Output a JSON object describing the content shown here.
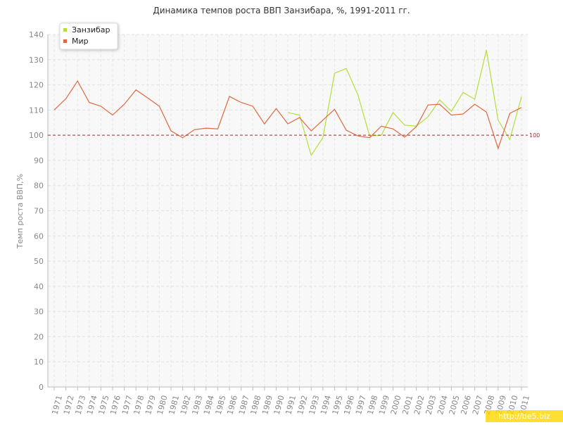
{
  "chart_data": {
    "type": "line",
    "title": "Динамика темпов роста ВВП Занзибара, %, 1991-2011 гг.",
    "y_label": "Темп роста ВВП,%",
    "categories": [
      "1971",
      "1972",
      "1973",
      "1974",
      "1975",
      "1976",
      "1977",
      "1978",
      "1979",
      "1980",
      "1981",
      "1982",
      "1983",
      "1984",
      "1985",
      "1986",
      "1987",
      "1988",
      "1989",
      "1990",
      "1991",
      "1992",
      "1993",
      "1994",
      "1995",
      "1996",
      "1997",
      "1998",
      "1999",
      "2000",
      "2001",
      "2002",
      "2003",
      "2004",
      "2005",
      "2006",
      "2007",
      "2008",
      "2009",
      "2010",
      "2011"
    ],
    "series": [
      {
        "name": "Занзибар",
        "color": "#b5de3c",
        "values": [
          null,
          null,
          null,
          null,
          null,
          null,
          null,
          null,
          null,
          null,
          null,
          null,
          null,
          null,
          null,
          null,
          null,
          null,
          null,
          null,
          109,
          108,
          92,
          99,
          124.6,
          126.5,
          116,
          99.7,
          100,
          109,
          104,
          103.6,
          107.3,
          114,
          109.5,
          117,
          114.3,
          133.8,
          106,
          98.3,
          115.3
        ]
      },
      {
        "name": "Мир",
        "color": "#e0683e",
        "values": [
          110,
          114.5,
          121.5,
          113,
          111.5,
          108,
          112.3,
          118,
          114.8,
          111.5,
          101.7,
          99,
          102.2,
          102.8,
          102.5,
          115.4,
          113,
          111.5,
          104.5,
          110.6,
          104.5,
          107,
          101.7,
          106,
          110.3,
          102,
          99.7,
          99,
          103.6,
          102.5,
          99.2,
          103.4,
          112,
          112.3,
          108,
          108.4,
          112.3,
          109.2,
          94.7,
          108.7,
          111
        ]
      }
    ],
    "ylim": [
      0,
      140
    ],
    "yticks": [
      0,
      10,
      20,
      30,
      40,
      50,
      60,
      70,
      80,
      90,
      100,
      110,
      120,
      130,
      140
    ],
    "grid": true,
    "legend": "top-left",
    "reference_line": {
      "value": 100,
      "color": "#a0303a"
    },
    "watermark": "http://be5.biz"
  }
}
